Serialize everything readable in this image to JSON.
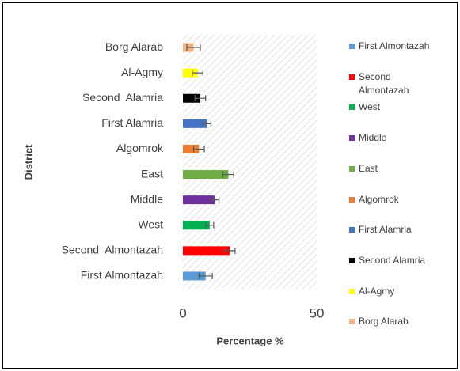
{
  "chart_data": {
    "type": "bar",
    "orientation": "horizontal",
    "categories": [
      "First Almontazah",
      "Second  Almontazah",
      "West",
      "Middle",
      "East",
      "Algomrok",
      "First Alamria",
      "Second  Alamria",
      "Al-Agmy",
      "Borg Alarab"
    ],
    "values": [
      8.5,
      17.5,
      10,
      12,
      17,
      6,
      9,
      6.5,
      5.5,
      4
    ],
    "errors": [
      2.5,
      2,
      1.5,
      1.5,
      2,
      2,
      1.5,
      2,
      2,
      2.5
    ],
    "colors": [
      "#5b9bd5",
      "#ff0000",
      "#00b050",
      "#7030a0",
      "#70ad47",
      "#ed7d31",
      "#4472c4",
      "#000000",
      "#ffff00",
      "#f4b183"
    ],
    "xlim": [
      0,
      50
    ],
    "xticks": [
      0,
      50
    ],
    "x_label": "Percentage %",
    "y_label": "District",
    "legend": "right"
  }
}
